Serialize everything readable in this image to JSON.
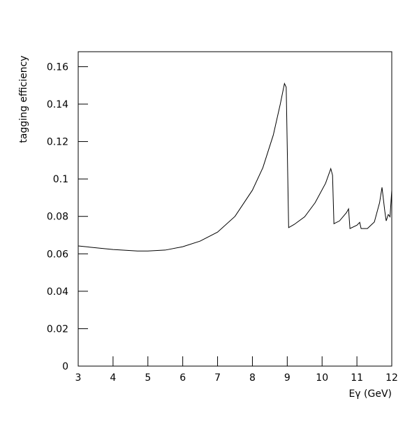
{
  "chart_data": {
    "type": "line",
    "xlabel": "Eγ (GeV)",
    "ylabel": "tagging efficiency",
    "xlim": [
      3,
      12
    ],
    "xticks": [
      3,
      4,
      5,
      6,
      7,
      8,
      9,
      10,
      11,
      12
    ],
    "ylim": [
      0,
      0.168
    ],
    "yticks": [
      0,
      0.02,
      0.04,
      0.06,
      0.08,
      0.1,
      0.12,
      0.14,
      0.16
    ],
    "series": [
      {
        "color": "#000000",
        "x": [
          3,
          4,
          4.7,
          5,
          5.5,
          6,
          6.5,
          7,
          7.5,
          8,
          8.3,
          8.6,
          8.8,
          8.92,
          8.97,
          9.04,
          9.2,
          9.5,
          9.8,
          10.1,
          10.25,
          10.3,
          10.34,
          10.5,
          10.7,
          10.76,
          10.8,
          11.0,
          11.08,
          11.12,
          11.3,
          11.5,
          11.65,
          11.72,
          11.8,
          11.84,
          11.9,
          11.95,
          12.0
        ],
        "values": [
          0.0642,
          0.0623,
          0.0615,
          0.0615,
          0.062,
          0.0638,
          0.0668,
          0.0716,
          0.08,
          0.094,
          0.106,
          0.1235,
          0.14,
          0.151,
          0.149,
          0.074,
          0.0757,
          0.0798,
          0.0873,
          0.0977,
          0.1055,
          0.102,
          0.0761,
          0.0776,
          0.082,
          0.084,
          0.0735,
          0.0753,
          0.0768,
          0.0735,
          0.0735,
          0.077,
          0.0873,
          0.0955,
          0.0828,
          0.0776,
          0.081,
          0.0798,
          0.094
        ]
      }
    ]
  }
}
